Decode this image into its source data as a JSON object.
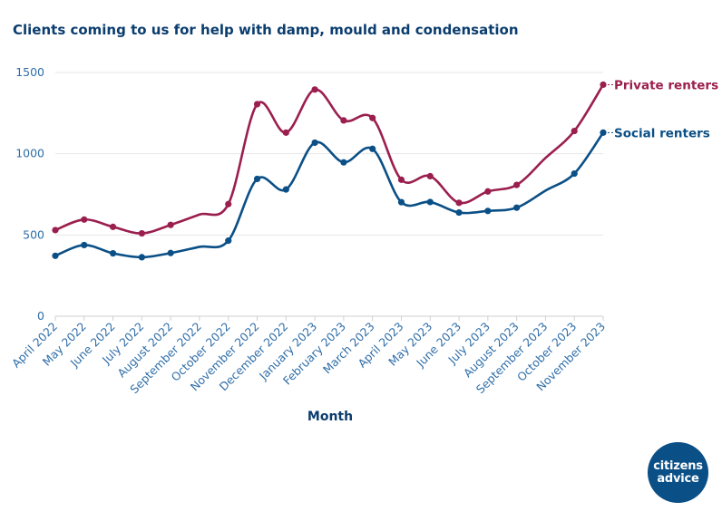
{
  "chart_data": {
    "type": "line",
    "title": "Clients coming to us for help with damp, mould and condensation",
    "xlabel": "Month",
    "ylabel": "",
    "ylim": [
      0,
      1600
    ],
    "yticks": [
      0,
      500,
      1000,
      1500
    ],
    "grid": true,
    "legend": "labels at end of lines (right)",
    "categories": [
      "April 2022",
      "May 2022",
      "June 2022",
      "July 2022",
      "August 2022",
      "September 2022",
      "October 2022",
      "November 2022",
      "December 2022",
      "January 2023",
      "February 2023",
      "March 2023",
      "April 2023",
      "May 2023",
      "June 2023",
      "July 2023",
      "August 2023",
      "September 2023",
      "October 2023",
      "November 2023"
    ],
    "series": [
      {
        "name": "Private renters",
        "color": "#9b1f4e",
        "values": [
          530,
          595,
          550,
          510,
          562,
          null,
          690,
          1305,
          1130,
          1395,
          1205,
          1220,
          840,
          862,
          698,
          768,
          808,
          null,
          1140,
          1425
        ]
      },
      {
        "name": "Social renters",
        "color": "#0a4f86",
        "values": [
          372,
          438,
          387,
          363,
          389,
          null,
          465,
          845,
          780,
          1068,
          947,
          1030,
          702,
          703,
          638,
          648,
          668,
          null,
          878,
          1130
        ]
      }
    ]
  },
  "logo": {
    "line1": "citizens",
    "line2": "advice"
  }
}
